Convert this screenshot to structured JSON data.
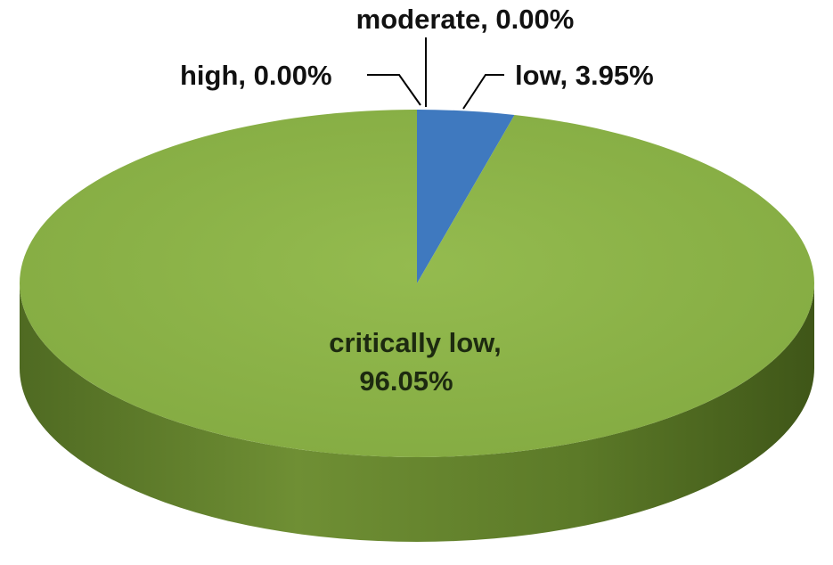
{
  "chart_data": {
    "type": "pie",
    "style": "3d",
    "title": "",
    "slices": [
      {
        "label": "critically low",
        "value": 96.05,
        "display": "96.05%",
        "color": "#8db34a"
      },
      {
        "label": "low",
        "value": 3.95,
        "display": "3.95%",
        "color": "#3f79bf"
      },
      {
        "label": "moderate",
        "value": 0.0,
        "display": "0.00%",
        "color": "#c0504d"
      },
      {
        "label": "high",
        "value": 0.0,
        "display": "0.00%",
        "color": "#7f6a9e"
      }
    ],
    "labels": {
      "moderate": "moderate, 0.00%",
      "high": "high, 0.00%",
      "low": "low, 3.95%",
      "critically_low_line1": "critically low,",
      "critically_low_line2": "96.05%"
    }
  }
}
